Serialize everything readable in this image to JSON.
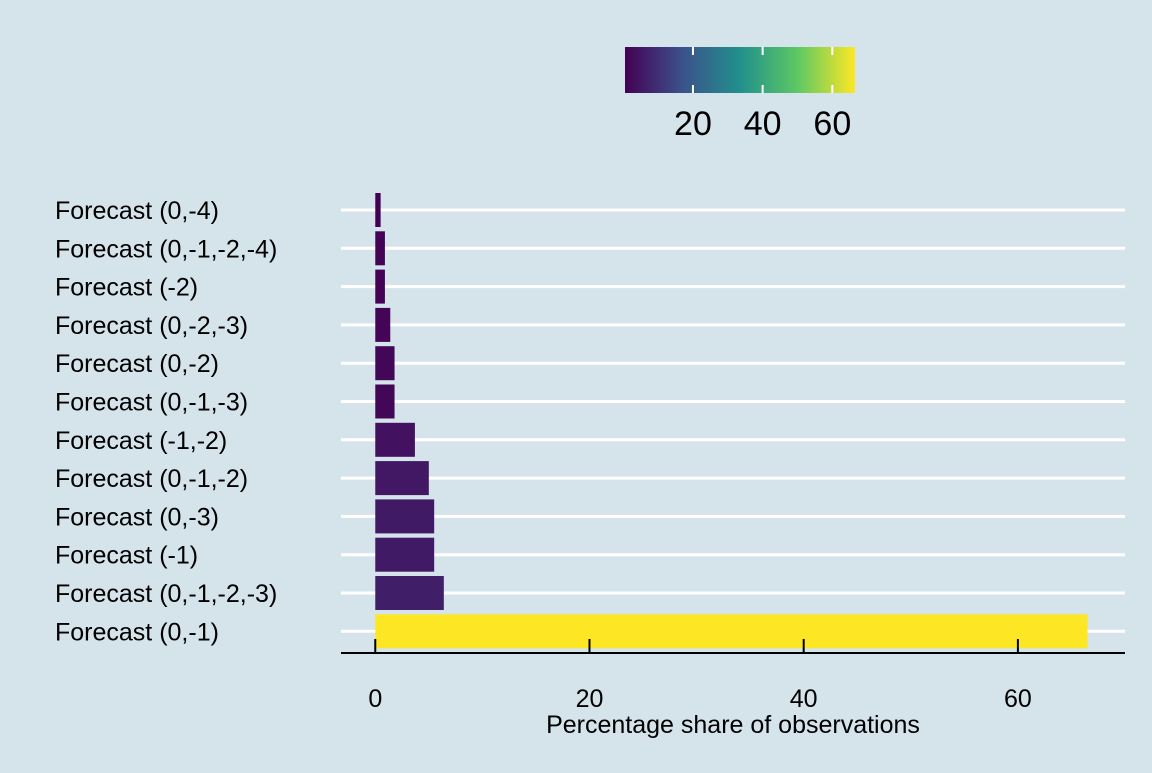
{
  "chart_data": {
    "type": "bar",
    "orientation": "horizontal",
    "xlabel": "Percentage share of observations",
    "ylabel": "",
    "xlim": [
      -3.2,
      70
    ],
    "xticks": [
      0,
      20,
      40,
      60
    ],
    "grid": "horizontal major lines",
    "legend": {
      "type": "colorbar",
      "placement": "top",
      "ticks": [
        20,
        40,
        60
      ],
      "range": [
        0.5,
        66.5
      ],
      "colors": [
        "#440154",
        "#3b528b",
        "#21908c",
        "#5dc863",
        "#fde725"
      ]
    },
    "bar_color_mapping": "value",
    "background_color": "#d5e3ea",
    "categories": [
      "Forecast (0,-4)",
      "Forecast (0,-1,-2,-4)",
      "Forecast (-2)",
      "Forecast (0,-2,-3)",
      "Forecast (0,-2)",
      "Forecast (0,-1,-3)",
      "Forecast (-1,-2)",
      "Forecast (0,-1,-2)",
      "Forecast (0,-3)",
      "Forecast (-1)",
      "Forecast (0,-1,-2,-3)",
      "Forecast (0,-1)"
    ],
    "values": [
      0.5,
      0.9,
      0.9,
      1.4,
      1.8,
      1.8,
      3.7,
      5.0,
      5.5,
      5.5,
      6.4,
      66.5
    ]
  }
}
